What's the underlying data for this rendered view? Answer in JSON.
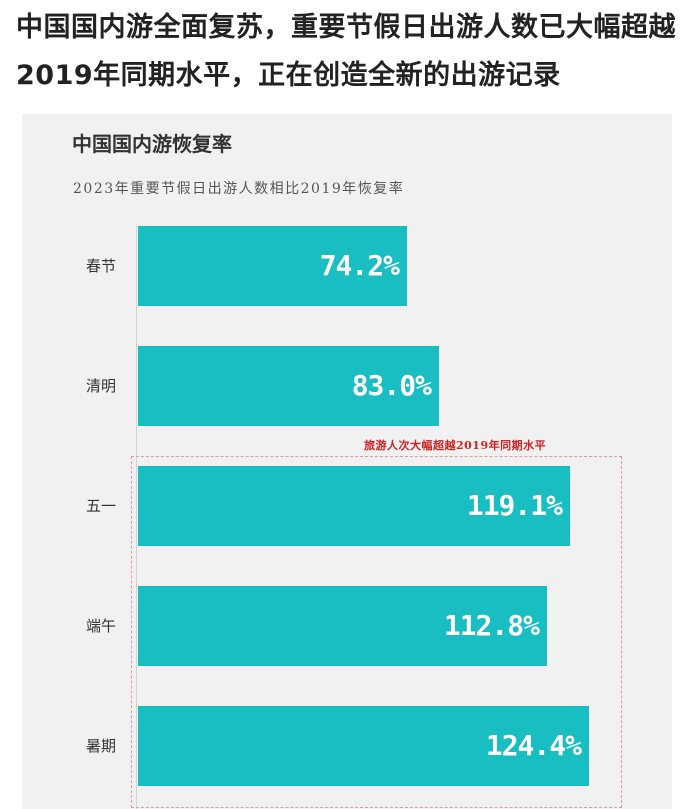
{
  "headline": "中国国内游全面复苏，重要节假日出游人数已大幅超越2019年同期水平，正在创造全新的出游记录",
  "chart_data": {
    "type": "bar",
    "orientation": "horizontal",
    "title": "中国国内游恢复率",
    "subtitle": "2023年重要节假日出游人数相比2019年恢复率",
    "categories": [
      "春节",
      "清明",
      "五一",
      "端午",
      "暑期"
    ],
    "values": [
      74.2,
      83.0,
      119.1,
      112.8,
      124.4
    ],
    "value_labels": [
      "74.2%",
      "83.0%",
      "119.1%",
      "112.8%",
      "124.4%"
    ],
    "unit": "%",
    "bar_color": "#18bec2",
    "annotation": "旅游人次大幅超越2019年同期水平",
    "annotation_color": "#cc2222",
    "highlighted_categories": [
      "五一",
      "端午",
      "暑期"
    ],
    "grid": false
  }
}
